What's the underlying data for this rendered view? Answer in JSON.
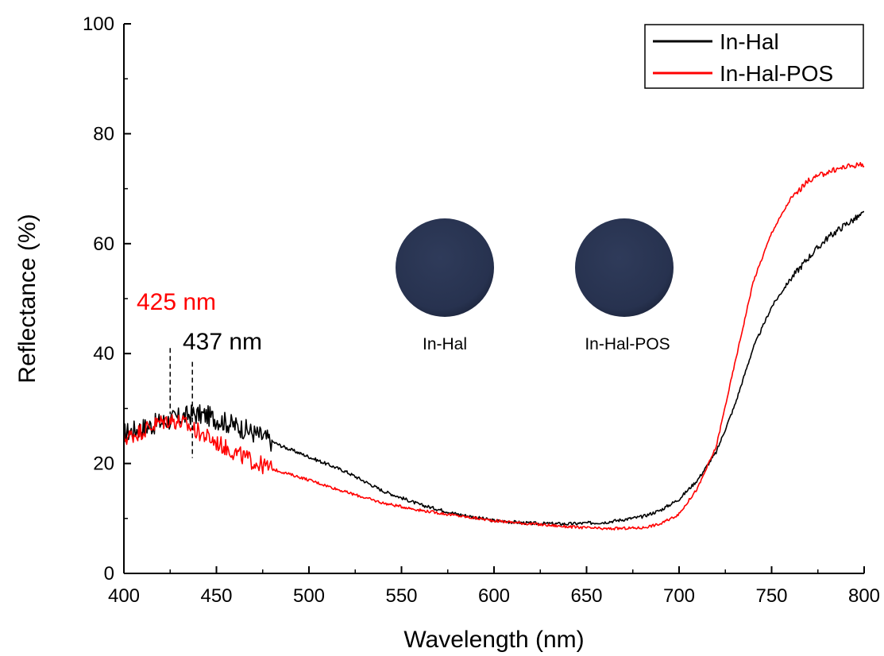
{
  "chart_data": {
    "type": "line",
    "xlabel": "Wavelength (nm)",
    "ylabel": "Reflectance (%)",
    "xlim": [
      400,
      800
    ],
    "ylim": [
      0,
      100
    ],
    "x_ticks": [
      400,
      450,
      500,
      550,
      600,
      650,
      700,
      750,
      800
    ],
    "y_ticks": [
      0,
      20,
      40,
      60,
      80,
      100
    ],
    "grid": false,
    "legend_position": "top-right",
    "series": [
      {
        "name": "In-Hal",
        "color": "#000000",
        "x": [
          400,
          410,
          420,
          430,
          437,
          445,
          455,
          465,
          475,
          485,
          500,
          520,
          540,
          560,
          580,
          600,
          620,
          640,
          660,
          680,
          690,
          700,
          710,
          720,
          730,
          740,
          750,
          760,
          770,
          780,
          790,
          800
        ],
        "y": [
          25.5,
          26.5,
          27.5,
          28.3,
          29.0,
          28.7,
          27.5,
          26.3,
          24.8,
          23.2,
          21.2,
          18.5,
          15.0,
          12.5,
          10.8,
          9.6,
          9.1,
          9.0,
          9.3,
          10.3,
          11.5,
          13.5,
          17.0,
          22.0,
          30.5,
          41.0,
          48.5,
          53.5,
          57.5,
          61.0,
          63.5,
          65.5
        ],
        "noise": 1.2
      },
      {
        "name": "In-Hal-POS",
        "color": "#ff0000",
        "x": [
          400,
          410,
          418,
          425,
          432,
          440,
          450,
          460,
          470,
          480,
          500,
          520,
          540,
          560,
          580,
          600,
          620,
          640,
          660,
          680,
          690,
          700,
          710,
          720,
          730,
          740,
          750,
          760,
          770,
          780,
          790,
          800
        ],
        "y": [
          24.5,
          26.0,
          27.3,
          28.0,
          27.3,
          25.8,
          23.8,
          22.0,
          20.3,
          19.0,
          17.0,
          14.8,
          12.8,
          11.5,
          10.5,
          9.6,
          9.0,
          8.5,
          8.1,
          8.3,
          9.0,
          10.8,
          15.5,
          23.0,
          38.0,
          53.0,
          62.0,
          68.0,
          71.5,
          73.0,
          74.0,
          74.5
        ],
        "noise": 1.0
      }
    ],
    "annotations": [
      {
        "text": "425 nm",
        "x": 425,
        "color": "#ff0000",
        "line_y": [
          29,
          41
        ]
      },
      {
        "text": "437 nm",
        "x": 437,
        "color": "#000000",
        "line_y": [
          21,
          38.5
        ]
      }
    ],
    "inset_samples": [
      {
        "label": "In-Hal",
        "disk_color": "#2a3653"
      },
      {
        "label": "In-Hal-POS",
        "disk_color": "#263150"
      }
    ]
  }
}
